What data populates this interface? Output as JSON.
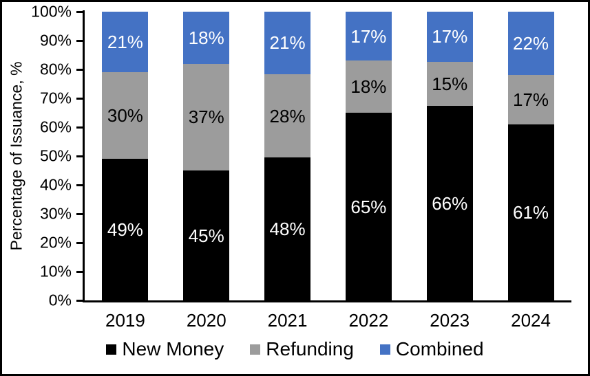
{
  "chart_data": {
    "type": "bar",
    "stacked": true,
    "title": "",
    "xlabel": "",
    "ylabel": "Percentage of Issuance, %",
    "ylim": [
      0,
      100
    ],
    "grid": false,
    "legend_position": "bottom",
    "value_suffix": "%",
    "y_ticks": [
      "0%",
      "10%",
      "20%",
      "30%",
      "40%",
      "50%",
      "60%",
      "70%",
      "80%",
      "90%",
      "100%"
    ],
    "categories": [
      "2019",
      "2020",
      "2021",
      "2022",
      "2023",
      "2024"
    ],
    "series": [
      {
        "name": "New Money",
        "color": "#000000",
        "label_color": "#FFFFFF",
        "values": [
          49,
          45,
          48,
          65,
          66,
          61
        ]
      },
      {
        "name": "Refunding",
        "color": "#9C9C9C",
        "label_color": "#000000",
        "values": [
          30,
          37,
          28,
          18,
          15,
          17
        ]
      },
      {
        "name": "Combined",
        "color": "#4472C4",
        "label_color": "#FFFFFF",
        "values": [
          21,
          18,
          21,
          17,
          17,
          22
        ]
      }
    ],
    "colors": {
      "axis": "#000000",
      "text": "#000000",
      "background": "#FFFFFF"
    }
  }
}
